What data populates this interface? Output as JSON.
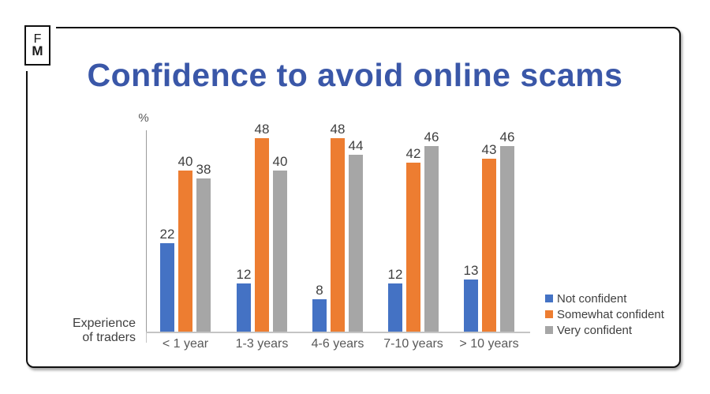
{
  "logo": {
    "line1": "F",
    "line2": "M"
  },
  "title": "Confidence to avoid online scams",
  "chart_data": {
    "type": "bar",
    "title": "Confidence to avoid online scams",
    "unit_label": "%",
    "axis_title": {
      "line1": "Experience",
      "line2": "of traders"
    },
    "categories": [
      "< 1 year",
      "1-3 years",
      "4-6 years",
      "7-10 years",
      "> 10 years"
    ],
    "series": [
      {
        "name": "Not confident",
        "color": "#4472C4",
        "values": [
          22,
          12,
          8,
          12,
          13
        ]
      },
      {
        "name": "Somewhat confident",
        "color": "#ED7D31",
        "values": [
          40,
          48,
          48,
          42,
          43
        ]
      },
      {
        "name": "Very confident",
        "color": "#A6A6A6",
        "values": [
          38,
          40,
          44,
          46,
          46
        ]
      }
    ],
    "ylim": [
      0,
      50
    ],
    "grid": false,
    "data_labels": true,
    "legend_position": "right",
    "xlabel": "",
    "ylabel": "%"
  },
  "colors": {
    "title": "#3a57a8",
    "frame_border": "#101010",
    "axis_line": "#9a9a9a",
    "baseline": "#c4c4c4",
    "label_text": "#3f3f3f",
    "category_text": "#595959"
  }
}
